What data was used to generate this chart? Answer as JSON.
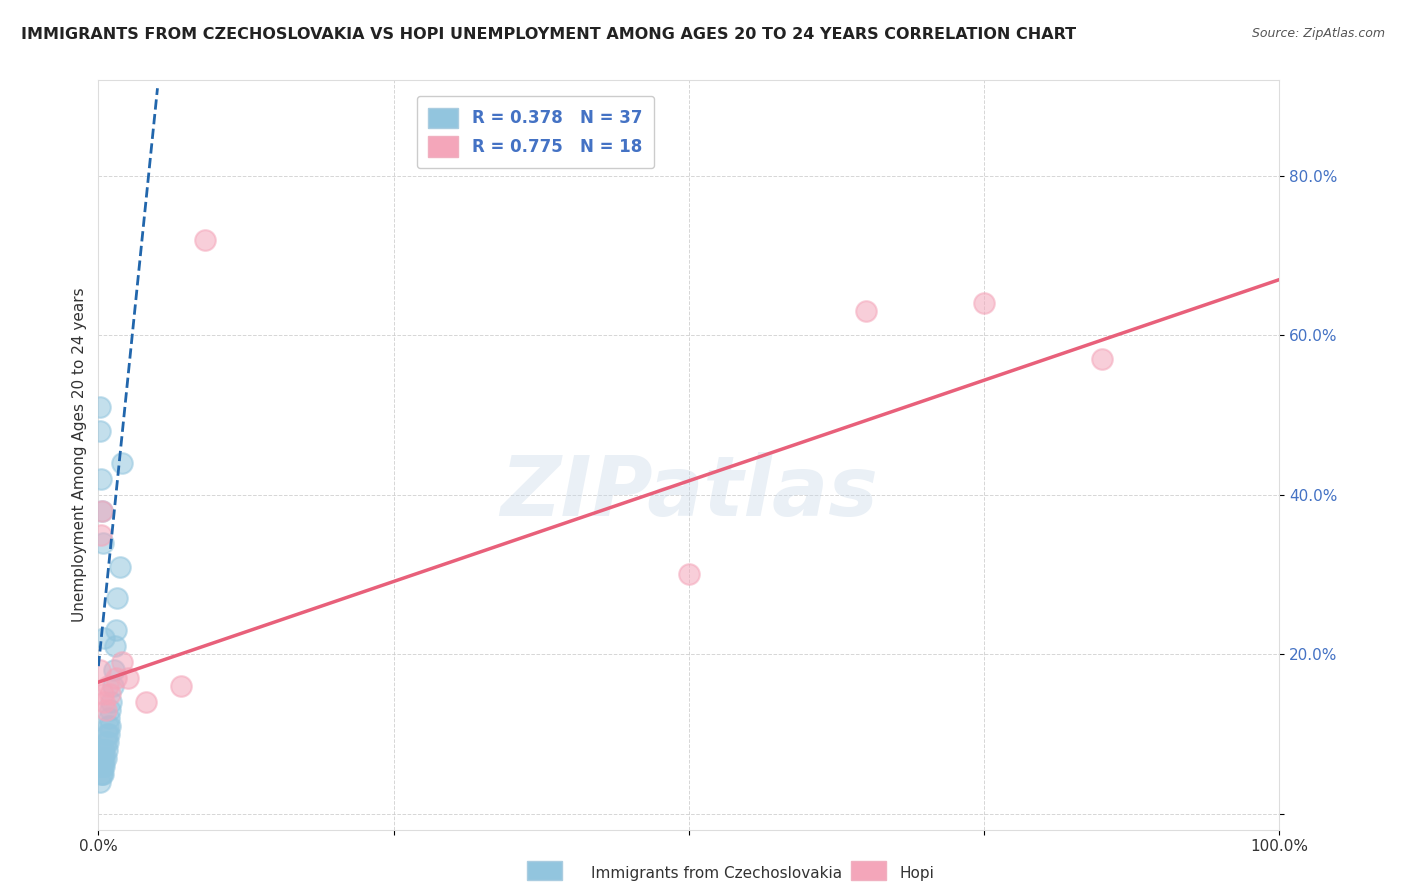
{
  "title": "IMMIGRANTS FROM CZECHOSLOVAKIA VS HOPI UNEMPLOYMENT AMONG AGES 20 TO 24 YEARS CORRELATION CHART",
  "source": "Source: ZipAtlas.com",
  "ylabel": "Unemployment Among Ages 20 to 24 years",
  "xlim": [
    0.0,
    1.0
  ],
  "ylim": [
    -0.02,
    0.92
  ],
  "legend_r1": "R = 0.378",
  "legend_n1": "N = 37",
  "legend_r2": "R = 0.775",
  "legend_n2": "N = 18",
  "blue_color": "#92c5de",
  "pink_color": "#f4a6ba",
  "blue_line_color": "#2166ac",
  "pink_line_color": "#e8607a",
  "watermark": "ZIPatlas",
  "background_color": "#ffffff",
  "blue_points_x": [
    0.001,
    0.001,
    0.002,
    0.002,
    0.003,
    0.003,
    0.003,
    0.004,
    0.004,
    0.004,
    0.005,
    0.005,
    0.005,
    0.006,
    0.006,
    0.007,
    0.007,
    0.008,
    0.008,
    0.009,
    0.009,
    0.01,
    0.01,
    0.011,
    0.012,
    0.013,
    0.014,
    0.015,
    0.016,
    0.018,
    0.02,
    0.001,
    0.001,
    0.002,
    0.003,
    0.004,
    0.005
  ],
  "blue_points_y": [
    0.06,
    0.04,
    0.07,
    0.05,
    0.08,
    0.06,
    0.05,
    0.07,
    0.06,
    0.05,
    0.08,
    0.07,
    0.06,
    0.09,
    0.07,
    0.1,
    0.08,
    0.11,
    0.09,
    0.12,
    0.1,
    0.13,
    0.11,
    0.14,
    0.16,
    0.18,
    0.21,
    0.23,
    0.27,
    0.31,
    0.44,
    0.48,
    0.51,
    0.42,
    0.38,
    0.34,
    0.22
  ],
  "pink_points_x": [
    0.001,
    0.002,
    0.003,
    0.004,
    0.005,
    0.006,
    0.008,
    0.01,
    0.015,
    0.02,
    0.025,
    0.04,
    0.07,
    0.09,
    0.5,
    0.65,
    0.75,
    0.85
  ],
  "pink_points_y": [
    0.18,
    0.35,
    0.38,
    0.15,
    0.14,
    0.13,
    0.16,
    0.15,
    0.17,
    0.19,
    0.17,
    0.14,
    0.16,
    0.72,
    0.3,
    0.63,
    0.64,
    0.57
  ],
  "blue_trendline_x": [
    0.0,
    0.05
  ],
  "blue_trendline_y": [
    0.185,
    0.91
  ],
  "pink_trendline_x": [
    0.0,
    1.0
  ],
  "pink_trendline_y": [
    0.165,
    0.67
  ]
}
